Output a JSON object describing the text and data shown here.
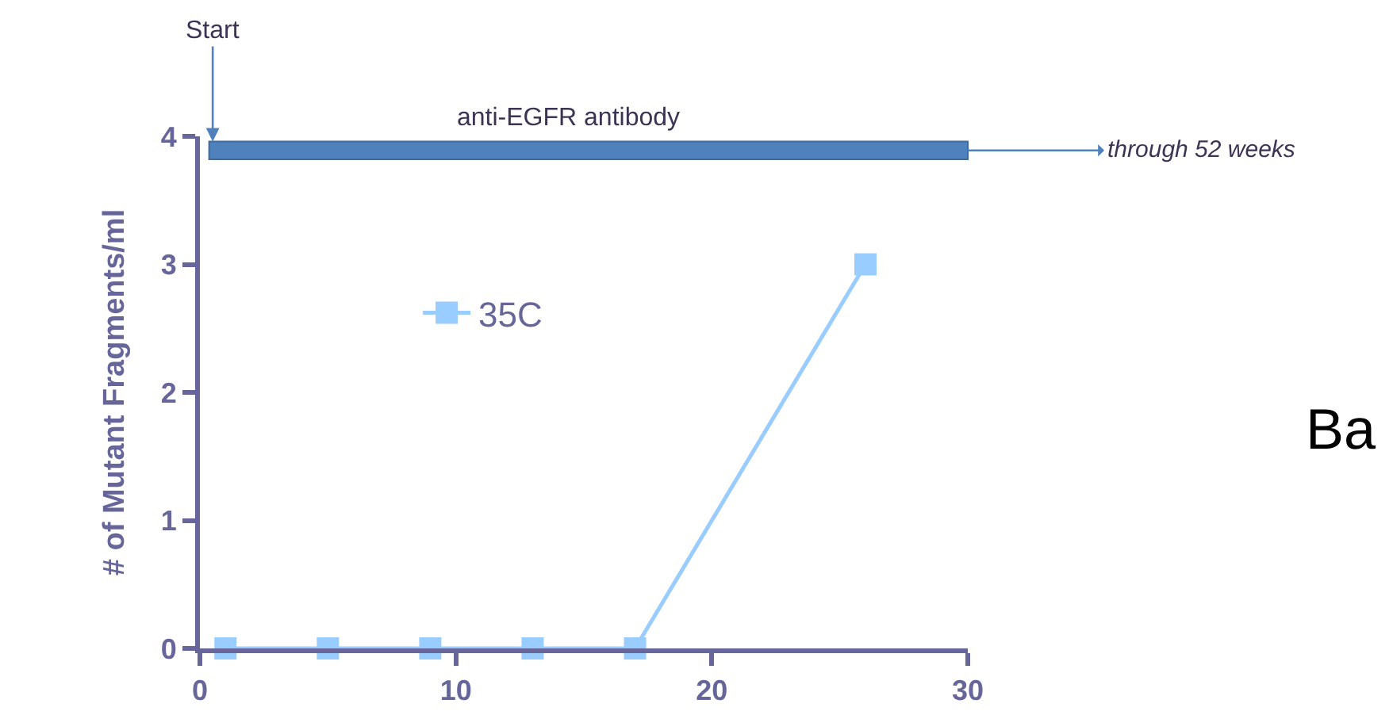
{
  "chart_data": {
    "type": "line",
    "ylabel": "# of Mutant Fragments/ml",
    "x": [
      1,
      5,
      9,
      13,
      17,
      26
    ],
    "series": [
      {
        "name": "35C",
        "color": "#99ccff",
        "values": [
          0,
          0,
          0,
          0,
          0,
          3
        ]
      }
    ],
    "xlim": [
      0,
      30
    ],
    "xticks": [
      0,
      10,
      20,
      30
    ],
    "ylim": [
      0,
      4
    ],
    "yticks": [
      0,
      1,
      2,
      3,
      4
    ],
    "bands": [
      {
        "axis": "y",
        "from": 3.82,
        "to": 3.96,
        "label": "anti-EGFR antibody",
        "color": "#4f81bd"
      }
    ],
    "annotations": [
      {
        "text": "Start",
        "x": 0.5,
        "y": 3.96
      },
      {
        "text": "through 52 weeks",
        "x": 30,
        "y": 3.89
      },
      "Ba"
    ],
    "marker": "square",
    "line_style": "solid",
    "grid": false,
    "legend": "top left"
  }
}
